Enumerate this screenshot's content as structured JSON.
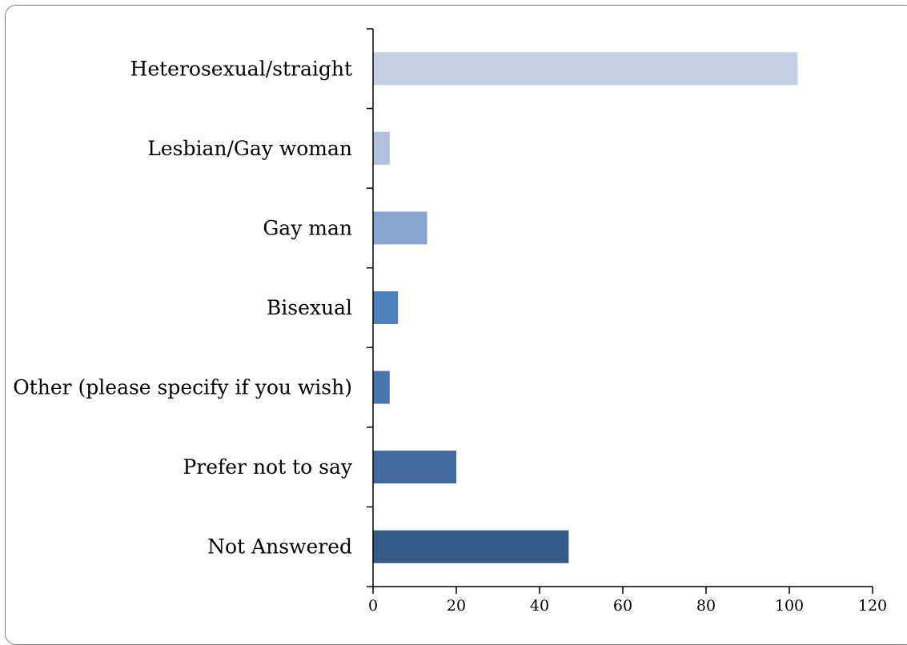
{
  "chart_data": {
    "type": "bar",
    "orientation": "horizontal",
    "categories": [
      "Heterosexual/straight",
      "Lesbian/Gay woman",
      "Gay man",
      "Bisexual",
      "Other (please specify if you wish)",
      "Prefer not to say",
      "Not Answered"
    ],
    "values": [
      102,
      4,
      13,
      6,
      4,
      20,
      47
    ],
    "colors": [
      "#c3cfe2",
      "#b0c0de",
      "#8aa5cf",
      "#4f81bd",
      "#4a76b0",
      "#41699f",
      "#345a87"
    ],
    "xlim": [
      0,
      120
    ],
    "xticks": [
      "0",
      "20",
      "40",
      "60",
      "80",
      "100",
      "120"
    ],
    "title": "",
    "xlabel": "",
    "ylabel": "",
    "grid": false,
    "legend": "none"
  }
}
